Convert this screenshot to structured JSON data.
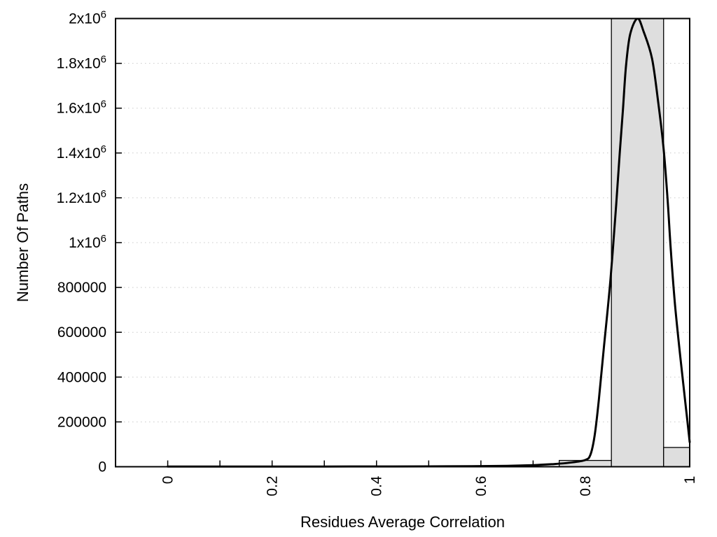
{
  "chart_data": {
    "type": "bar+line",
    "title": "",
    "xlabel": "Residues Average Correlation",
    "ylabel": "Number Of Paths",
    "xlim": [
      -0.1,
      1.0
    ],
    "ylim": [
      0,
      2000000
    ],
    "x_major_ticks": [
      0,
      0.2,
      0.4,
      0.6,
      0.8,
      1
    ],
    "x_major_tick_labels": [
      "0",
      "0.2",
      "0.4",
      "0.6",
      "0.8",
      "1"
    ],
    "x_minor_tick_step": 0.1,
    "x_tick_label_rotation_deg": 90,
    "y_ticks": [
      0,
      200000,
      400000,
      600000,
      800000,
      1000000,
      1200000,
      1400000,
      1600000,
      1800000,
      2000000
    ],
    "y_tick_labels": [
      "0",
      "200000",
      "400000",
      "600000",
      "800000",
      "1x10^6",
      "1.2x10^6",
      "1.4x10^6",
      "1.6x10^6",
      "1.8x10^6",
      "2x10^6"
    ],
    "grid": {
      "horizontal": true,
      "vertical": false,
      "style": "dotted",
      "color": "#c9c9c9"
    },
    "histogram": {
      "name": "paths-histogram",
      "fill": "#dedede",
      "border": "#000000",
      "bins": [
        {
          "x_start": 0.75,
          "x_end": 0.85,
          "value": 28000
        },
        {
          "x_start": 0.85,
          "x_end": 0.95,
          "value": 2000000
        },
        {
          "x_start": 0.95,
          "x_end": 1.0,
          "value": 86000
        }
      ]
    },
    "line_series": {
      "name": "fit-curve",
      "color": "#000000",
      "points": [
        [
          0.0,
          1000
        ],
        [
          0.1,
          1000
        ],
        [
          0.2,
          1000
        ],
        [
          0.3,
          1000
        ],
        [
          0.4,
          1200
        ],
        [
          0.5,
          1500
        ],
        [
          0.58,
          2200
        ],
        [
          0.65,
          4000
        ],
        [
          0.7,
          7000
        ],
        [
          0.74,
          12000
        ],
        [
          0.77,
          18000
        ],
        [
          0.8,
          30000
        ],
        [
          0.81,
          55000
        ],
        [
          0.818,
          140000
        ],
        [
          0.826,
          300000
        ],
        [
          0.836,
          540000
        ],
        [
          0.848,
          830000
        ],
        [
          0.858,
          1130000
        ],
        [
          0.866,
          1400000
        ],
        [
          0.872,
          1590000
        ],
        [
          0.878,
          1790000
        ],
        [
          0.886,
          1930000
        ],
        [
          0.9,
          2000000
        ],
        [
          0.912,
          1940000
        ],
        [
          0.928,
          1820000
        ],
        [
          0.94,
          1620000
        ],
        [
          0.95,
          1420000
        ],
        [
          0.958,
          1180000
        ],
        [
          0.964,
          960000
        ],
        [
          0.972,
          720000
        ],
        [
          0.982,
          490000
        ],
        [
          0.992,
          280000
        ],
        [
          1.0,
          110000
        ]
      ]
    }
  }
}
